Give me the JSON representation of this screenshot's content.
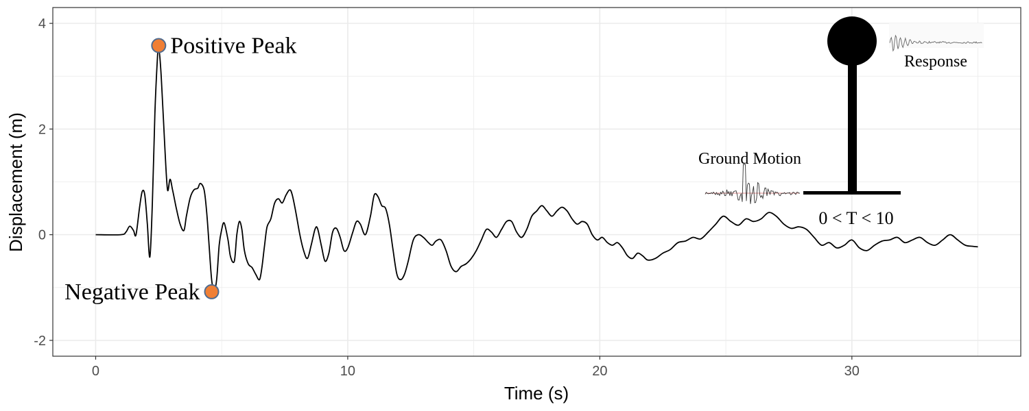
{
  "chart_data": {
    "type": "line",
    "xlabel": "Time (s)",
    "ylabel": "Displacement (m)",
    "xlim": [
      -1.7,
      36.7
    ],
    "ylim": [
      -2.3,
      4.3
    ],
    "xticks": [
      0,
      10,
      20,
      30
    ],
    "yticks": [
      -2,
      0,
      2,
      4
    ],
    "grid": true,
    "series": [
      {
        "color": "#000000",
        "points": [
          [
            0,
            0
          ],
          [
            1.0,
            0.0
          ],
          [
            1.2,
            0.05
          ],
          [
            1.35,
            0.16
          ],
          [
            1.5,
            0.08
          ],
          [
            1.6,
            0.0
          ],
          [
            1.75,
            0.55
          ],
          [
            1.85,
            0.82
          ],
          [
            1.95,
            0.75
          ],
          [
            2.05,
            0.2
          ],
          [
            2.15,
            -0.42
          ],
          [
            2.25,
            0.6
          ],
          [
            2.35,
            2.3
          ],
          [
            2.45,
            3.35
          ],
          [
            2.5,
            3.55
          ],
          [
            2.6,
            3.0
          ],
          [
            2.75,
            1.6
          ],
          [
            2.85,
            0.85
          ],
          [
            2.95,
            1.05
          ],
          [
            3.05,
            0.85
          ],
          [
            3.2,
            0.5
          ],
          [
            3.35,
            0.2
          ],
          [
            3.5,
            0.08
          ],
          [
            3.6,
            0.35
          ],
          [
            3.75,
            0.7
          ],
          [
            3.9,
            0.85
          ],
          [
            4.05,
            0.88
          ],
          [
            4.15,
            0.97
          ],
          [
            4.3,
            0.85
          ],
          [
            4.4,
            0.45
          ],
          [
            4.5,
            -0.2
          ],
          [
            4.6,
            -0.85
          ],
          [
            4.7,
            -1.05
          ],
          [
            4.8,
            -0.85
          ],
          [
            4.9,
            -0.2
          ],
          [
            5.0,
            0.1
          ],
          [
            5.1,
            0.22
          ],
          [
            5.25,
            -0.1
          ],
          [
            5.35,
            -0.42
          ],
          [
            5.5,
            -0.5
          ],
          [
            5.6,
            0.0
          ],
          [
            5.7,
            0.25
          ],
          [
            5.8,
            0.1
          ],
          [
            5.9,
            -0.3
          ],
          [
            6.05,
            -0.55
          ],
          [
            6.2,
            -0.62
          ],
          [
            6.35,
            -0.75
          ],
          [
            6.5,
            -0.85
          ],
          [
            6.6,
            -0.6
          ],
          [
            6.7,
            -0.2
          ],
          [
            6.8,
            0.15
          ],
          [
            6.95,
            0.3
          ],
          [
            7.1,
            0.6
          ],
          [
            7.25,
            0.68
          ],
          [
            7.4,
            0.6
          ],
          [
            7.55,
            0.75
          ],
          [
            7.7,
            0.85
          ],
          [
            7.8,
            0.75
          ],
          [
            7.95,
            0.4
          ],
          [
            8.1,
            0.0
          ],
          [
            8.25,
            -0.3
          ],
          [
            8.4,
            -0.45
          ],
          [
            8.55,
            -0.2
          ],
          [
            8.7,
            0.1
          ],
          [
            8.8,
            0.12
          ],
          [
            8.95,
            -0.2
          ],
          [
            9.1,
            -0.5
          ],
          [
            9.25,
            -0.35
          ],
          [
            9.4,
            0.05
          ],
          [
            9.55,
            0.12
          ],
          [
            9.7,
            -0.05
          ],
          [
            9.85,
            -0.3
          ],
          [
            10.0,
            -0.25
          ],
          [
            10.2,
            0.05
          ],
          [
            10.35,
            0.25
          ],
          [
            10.5,
            0.2
          ],
          [
            10.7,
            0.0
          ],
          [
            10.9,
            0.35
          ],
          [
            11.05,
            0.75
          ],
          [
            11.2,
            0.72
          ],
          [
            11.35,
            0.55
          ],
          [
            11.5,
            0.5
          ],
          [
            11.65,
            0.2
          ],
          [
            11.8,
            -0.3
          ],
          [
            11.95,
            -0.75
          ],
          [
            12.1,
            -0.85
          ],
          [
            12.25,
            -0.75
          ],
          [
            12.4,
            -0.5
          ],
          [
            12.6,
            -0.1
          ],
          [
            12.8,
            0.0
          ],
          [
            13.0,
            -0.05
          ],
          [
            13.2,
            -0.15
          ],
          [
            13.35,
            -0.2
          ],
          [
            13.5,
            -0.12
          ],
          [
            13.7,
            -0.1
          ],
          [
            13.9,
            -0.3
          ],
          [
            14.1,
            -0.6
          ],
          [
            14.3,
            -0.7
          ],
          [
            14.5,
            -0.6
          ],
          [
            14.7,
            -0.55
          ],
          [
            14.9,
            -0.45
          ],
          [
            15.1,
            -0.3
          ],
          [
            15.3,
            -0.1
          ],
          [
            15.5,
            0.1
          ],
          [
            15.7,
            0.05
          ],
          [
            15.9,
            -0.05
          ],
          [
            16.1,
            0.1
          ],
          [
            16.3,
            0.25
          ],
          [
            16.5,
            0.25
          ],
          [
            16.7,
            0.05
          ],
          [
            16.9,
            -0.05
          ],
          [
            17.1,
            0.1
          ],
          [
            17.3,
            0.35
          ],
          [
            17.5,
            0.45
          ],
          [
            17.7,
            0.55
          ],
          [
            17.9,
            0.45
          ],
          [
            18.1,
            0.35
          ],
          [
            18.3,
            0.45
          ],
          [
            18.5,
            0.52
          ],
          [
            18.7,
            0.45
          ],
          [
            18.9,
            0.3
          ],
          [
            19.1,
            0.2
          ],
          [
            19.3,
            0.25
          ],
          [
            19.5,
            0.2
          ],
          [
            19.7,
            0.0
          ],
          [
            19.9,
            -0.1
          ],
          [
            20.1,
            -0.05
          ],
          [
            20.3,
            -0.15
          ],
          [
            20.5,
            -0.2
          ],
          [
            20.7,
            -0.15
          ],
          [
            20.9,
            -0.25
          ],
          [
            21.1,
            -0.4
          ],
          [
            21.3,
            -0.45
          ],
          [
            21.5,
            -0.35
          ],
          [
            21.7,
            -0.4
          ],
          [
            21.9,
            -0.48
          ],
          [
            22.2,
            -0.45
          ],
          [
            22.5,
            -0.35
          ],
          [
            22.8,
            -0.28
          ],
          [
            23.1,
            -0.15
          ],
          [
            23.4,
            -0.12
          ],
          [
            23.7,
            -0.05
          ],
          [
            24.0,
            -0.08
          ],
          [
            24.3,
            0.05
          ],
          [
            24.6,
            0.2
          ],
          [
            24.9,
            0.35
          ],
          [
            25.2,
            0.25
          ],
          [
            25.5,
            0.18
          ],
          [
            25.8,
            0.3
          ],
          [
            26.1,
            0.25
          ],
          [
            26.4,
            0.3
          ],
          [
            26.7,
            0.42
          ],
          [
            27.0,
            0.35
          ],
          [
            27.3,
            0.2
          ],
          [
            27.6,
            0.12
          ],
          [
            27.9,
            0.15
          ],
          [
            28.2,
            0.1
          ],
          [
            28.5,
            -0.05
          ],
          [
            28.8,
            -0.2
          ],
          [
            29.1,
            -0.15
          ],
          [
            29.4,
            -0.25
          ],
          [
            29.7,
            -0.2
          ],
          [
            30.0,
            -0.1
          ],
          [
            30.3,
            -0.25
          ],
          [
            30.6,
            -0.3
          ],
          [
            30.9,
            -0.2
          ],
          [
            31.2,
            -0.12
          ],
          [
            31.5,
            -0.1
          ],
          [
            31.8,
            -0.05
          ],
          [
            32.1,
            -0.15
          ],
          [
            32.4,
            -0.1
          ],
          [
            32.7,
            -0.05
          ],
          [
            33.0,
            -0.15
          ],
          [
            33.3,
            -0.2
          ],
          [
            33.6,
            -0.1
          ],
          [
            33.9,
            0.0
          ],
          [
            34.2,
            -0.1
          ],
          [
            34.5,
            -0.2
          ],
          [
            34.8,
            -0.22
          ],
          [
            35.0,
            -0.23
          ]
        ]
      }
    ],
    "peaks": [
      {
        "label": "Positive Peak",
        "x": 2.5,
        "y": 3.58,
        "color": "#f07f35",
        "edge": "#4f6b8f"
      },
      {
        "label": "Negative Peak",
        "x": 4.6,
        "y": -1.08,
        "color": "#f07f35",
        "edge": "#4f6b8f"
      }
    ],
    "annotations": {
      "ground_motion": "Ground Motion",
      "response": "Response",
      "period_range": "0 < T < 10"
    }
  }
}
